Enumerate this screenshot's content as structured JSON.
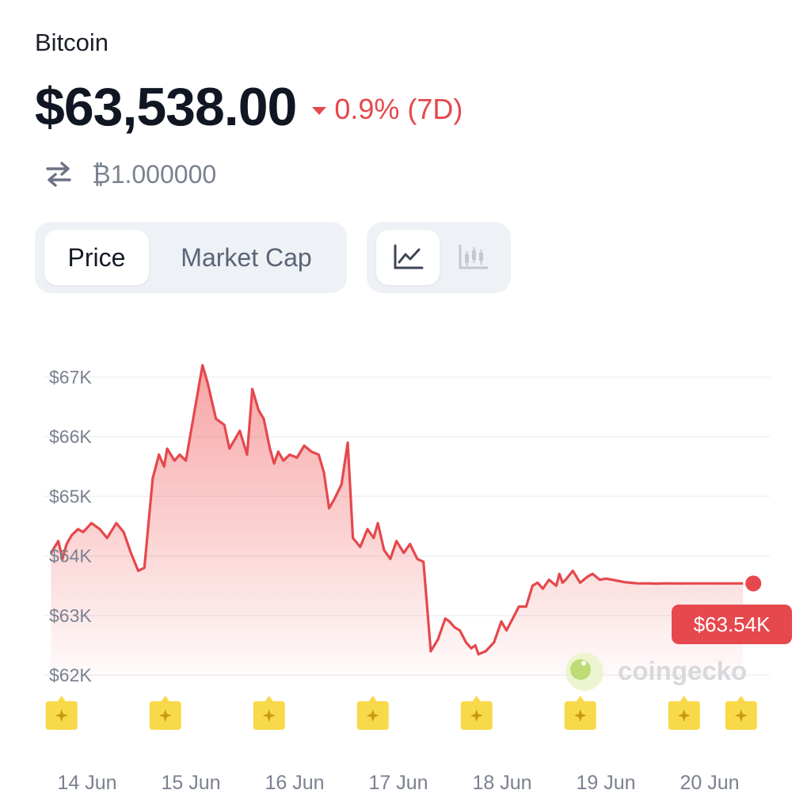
{
  "coin": {
    "name": "Bitcoin"
  },
  "price": {
    "value": "$63,538.00",
    "change_pct": "0.9%",
    "change_period": "(7D)",
    "btc_value": "₿1.000000"
  },
  "tabs": {
    "price_label": "Price",
    "market_cap_label": "Market Cap",
    "active": "Price"
  },
  "chart_modes": {
    "line": "line-chart-icon",
    "candle": "candlestick-icon",
    "active": "line"
  },
  "colors": {
    "line": "#e5484d",
    "negative": "#e5484d",
    "badge": "#e5484d",
    "event_marker": "#f8d949"
  },
  "watermark": {
    "text": "coingecko"
  },
  "chart_data": {
    "type": "area",
    "x_tick_labels": [
      "14 Jun",
      "15 Jun",
      "16 Jun",
      "17 Jun",
      "18 Jun",
      "19 Jun",
      "20 Jun"
    ],
    "y_tick_values": [
      62000,
      63000,
      64000,
      65000,
      66000,
      67000
    ],
    "y_tick_labels": [
      "$62K",
      "$63K",
      "$64K",
      "$65K",
      "$66K",
      "$67K"
    ],
    "ylim": [
      62000,
      67000
    ],
    "x_unit": "days since 14 Jun 00:00",
    "xlim": [
      -0.18,
      6.6
    ],
    "grid": true,
    "current_value_label": "$63.54K",
    "event_markers_at_x": [
      -0.17,
      0.83,
      1.83,
      2.83,
      3.83,
      4.83,
      5.83,
      6.38
    ],
    "series": [
      {
        "x": [
          -0.18,
          -0.11,
          -0.07,
          -0.03,
          0.02,
          0.08,
          0.13,
          0.21,
          0.29,
          0.36,
          0.45,
          0.52,
          0.59,
          0.66,
          0.72,
          0.8,
          0.86,
          0.91,
          0.94,
          1.01,
          1.06,
          1.12,
          1.2,
          1.28,
          1.33,
          1.41,
          1.49,
          1.54,
          1.64,
          1.71,
          1.76,
          1.82,
          1.87,
          1.93,
          1.97,
          2.01,
          2.06,
          2.12,
          2.19,
          2.26,
          2.33,
          2.4,
          2.45,
          2.5,
          2.55,
          2.62,
          2.68,
          2.73,
          2.8,
          2.87,
          2.93,
          2.97,
          3.03,
          3.09,
          3.15,
          3.22,
          3.28,
          3.35,
          3.41,
          3.48,
          3.55,
          3.62,
          3.66,
          3.71,
          3.76,
          3.82,
          3.87,
          3.91,
          3.94,
          4.01,
          4.09,
          4.16,
          4.21,
          4.27,
          4.33,
          4.4,
          4.46,
          4.51,
          4.56,
          4.62,
          4.69,
          4.72,
          4.75,
          4.78,
          4.85,
          4.92,
          4.99,
          5.04,
          5.11,
          5.17,
          5.23,
          5.29,
          5.35,
          5.4,
          5.47,
          5.53,
          5.58,
          5.65,
          5.71,
          5.77,
          5.83,
          5.89,
          5.95,
          6.01,
          6.06,
          6.12,
          6.19,
          6.25,
          6.3,
          6.37,
          6.44,
          6.49
        ],
        "y": [
          64050,
          64250,
          63950,
          64200,
          64350,
          64450,
          64400,
          64550,
          64450,
          64300,
          64550,
          64400,
          64050,
          63750,
          63800,
          65300,
          65700,
          65500,
          65800,
          65600,
          65700,
          65600,
          66400,
          67200,
          66900,
          66300,
          66200,
          65800,
          66100,
          65700,
          66800,
          66450,
          66300,
          65800,
          65550,
          65750,
          65600,
          65700,
          65650,
          65850,
          65750,
          65700,
          65400,
          64800,
          64950,
          65200,
          65900,
          64300,
          64150,
          64450,
          64300,
          64550,
          64100,
          63950,
          64250,
          64050,
          64200,
          63950,
          63900,
          62400,
          62600,
          62950,
          62900,
          62800,
          62750,
          62550,
          62450,
          62500,
          62350,
          62400,
          62550,
          62900,
          62750,
          62950,
          63150,
          63150,
          63500,
          63550,
          63450,
          63600,
          63500,
          63700,
          63550,
          63600,
          63750,
          63550,
          63650,
          63700,
          63600,
          63620,
          63600,
          63580,
          63560,
          63550,
          63540,
          63538,
          63540,
          63535,
          63538,
          63540,
          63538,
          63537,
          63538,
          63538,
          63538,
          63538,
          63538,
          63538,
          63538,
          63538,
          63538,
          63538
        ]
      }
    ]
  }
}
